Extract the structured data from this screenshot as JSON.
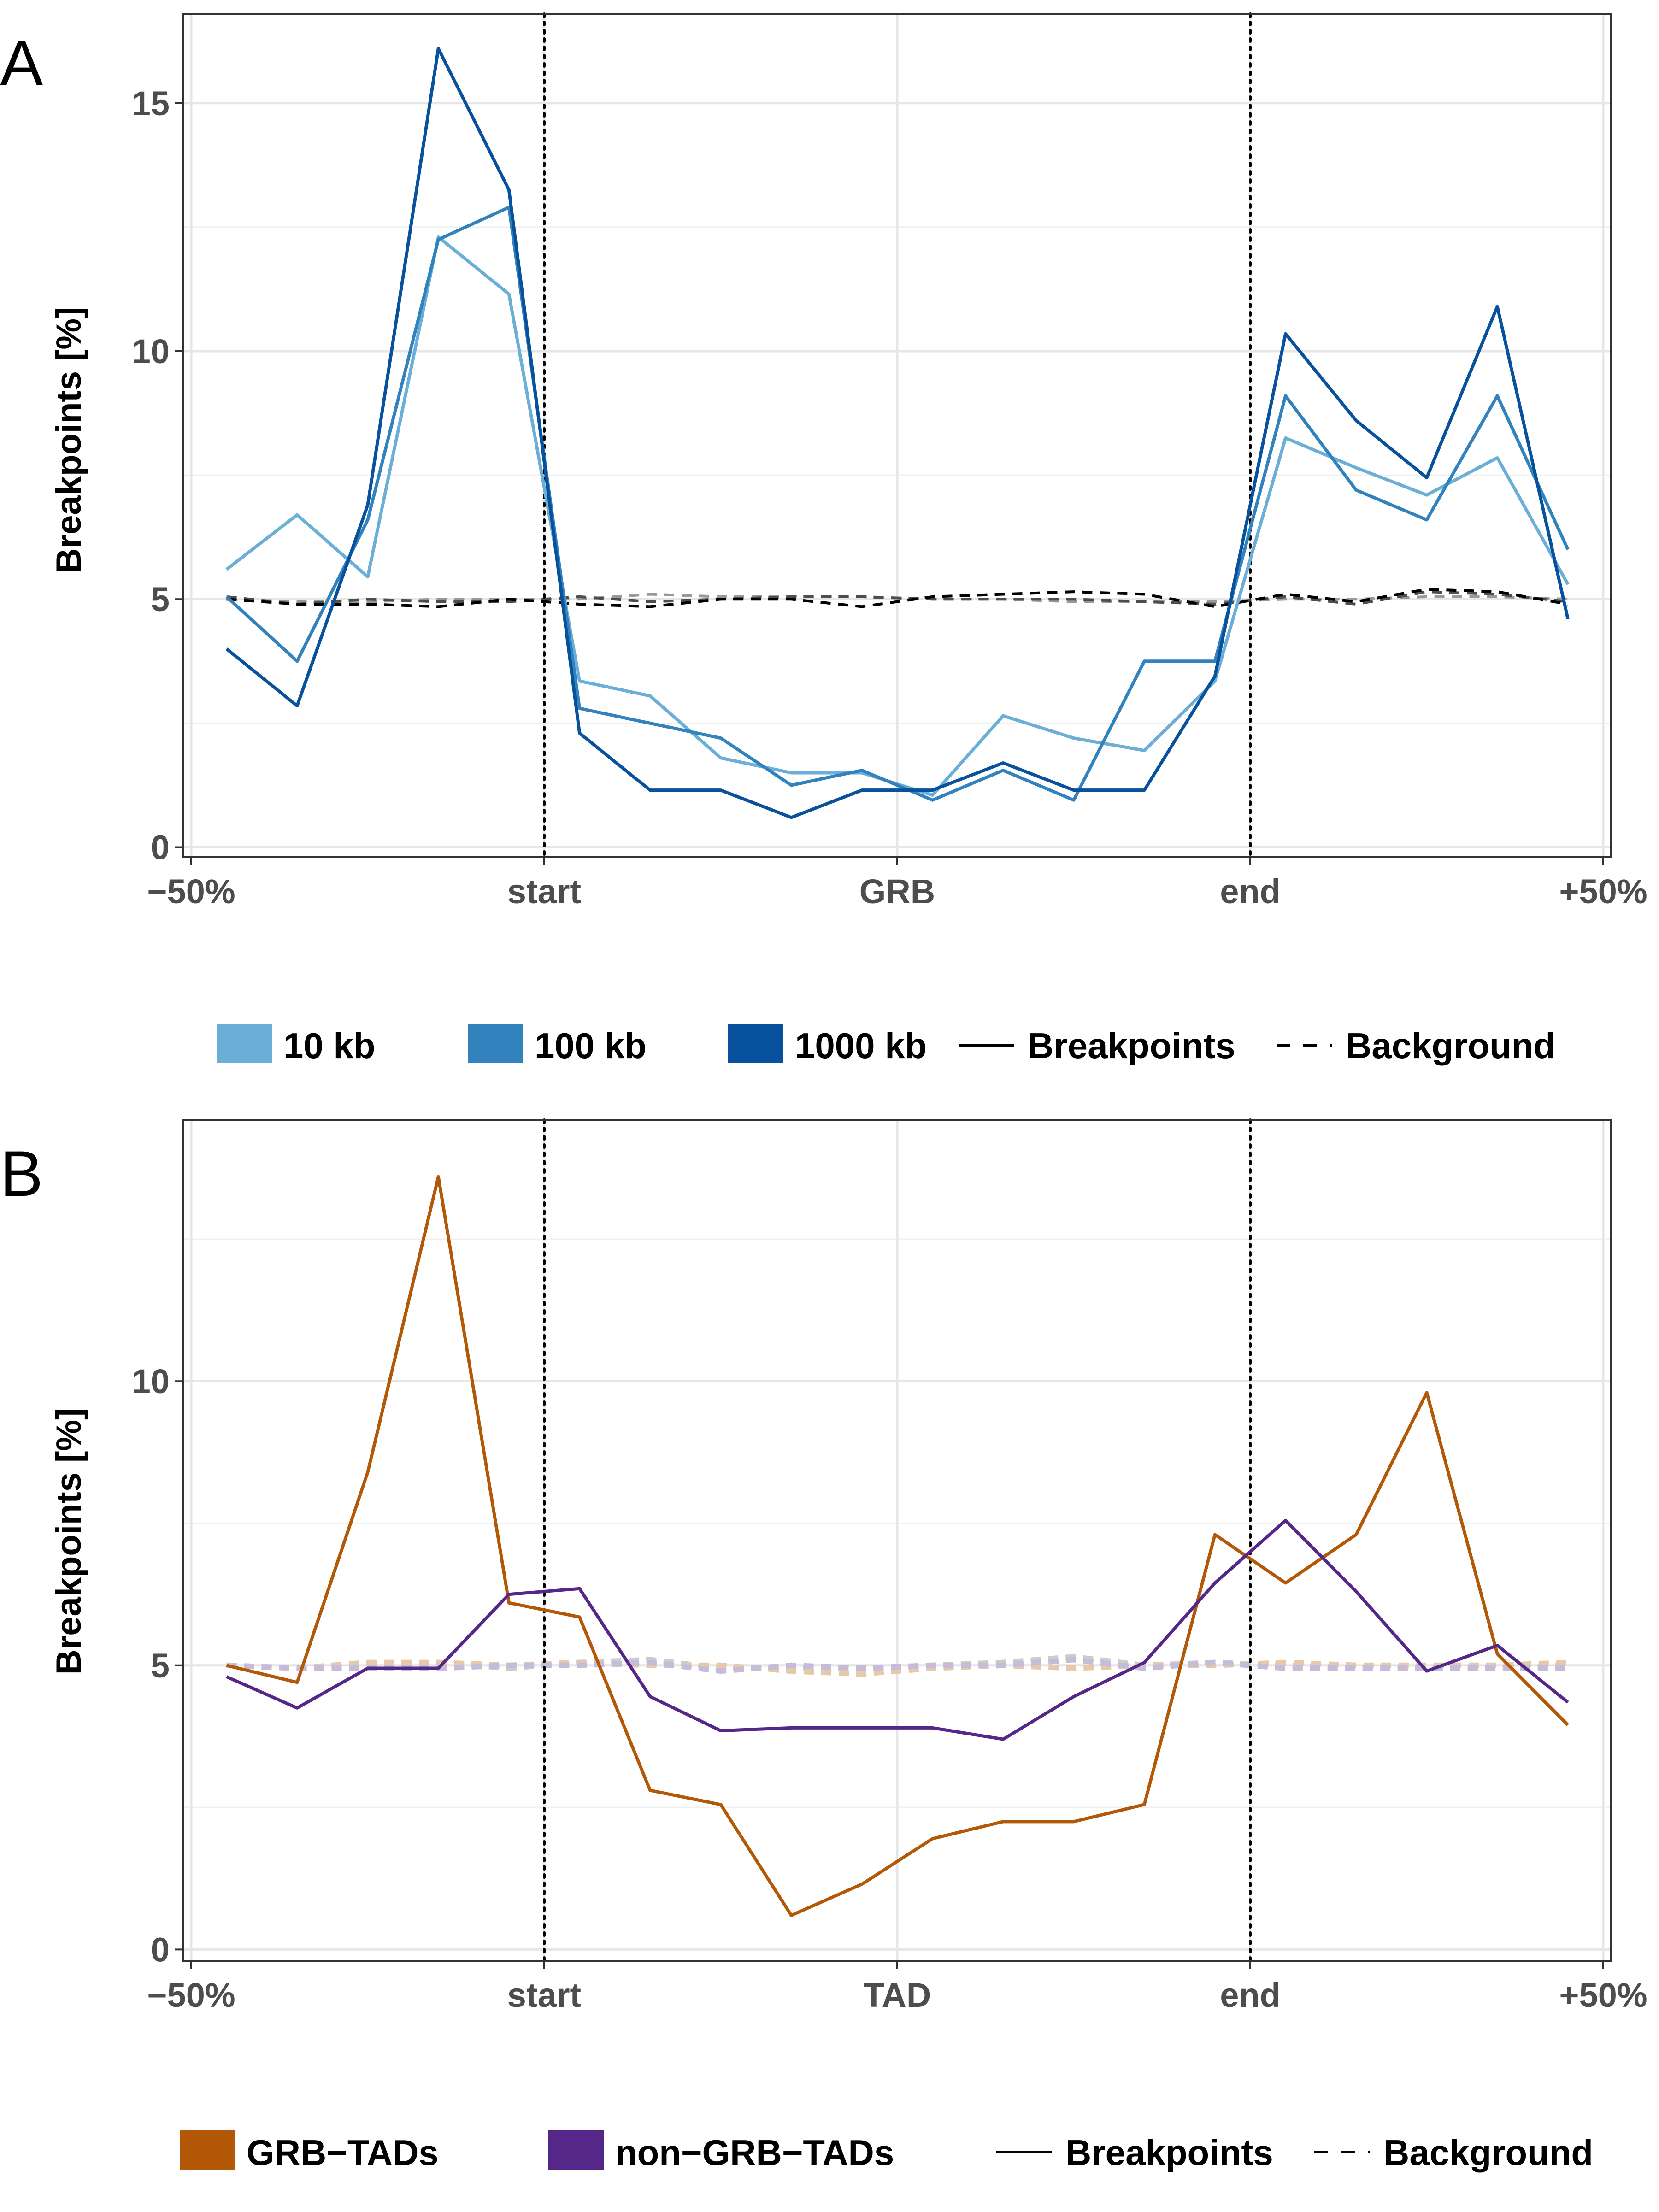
{
  "chart_data": [
    {
      "panel_label": "A",
      "type": "line",
      "ylabel": "Breakpoints [%]",
      "ylim": [
        -0.2,
        16.8
      ],
      "yticks": [
        0,
        5,
        10,
        15
      ],
      "xticks": [
        "−50%",
        "start",
        "GRB",
        "end",
        "+50%"
      ],
      "boundaries": [
        "start",
        "end"
      ],
      "x": [
        -0.45,
        -0.35,
        -0.25,
        -0.15,
        -0.05,
        0.05,
        0.15,
        0.25,
        0.35,
        0.45,
        0.55,
        0.65,
        0.75,
        0.85,
        0.95,
        1.05,
        1.15,
        1.25,
        1.35,
        1.45
      ],
      "series": [
        {
          "name": "10 kb",
          "style": "Breakpoints",
          "color": "#6baed6",
          "values": [
            5.6,
            6.7,
            5.45,
            12.3,
            11.15,
            3.35,
            3.05,
            1.8,
            1.5,
            1.5,
            1.05,
            2.65,
            2.2,
            1.95,
            3.35,
            8.25,
            7.65,
            7.1,
            7.85,
            5.3
          ]
        },
        {
          "name": "100 kb",
          "style": "Breakpoints",
          "color": "#3182bd",
          "values": [
            5.05,
            3.75,
            6.6,
            12.25,
            12.9,
            2.8,
            2.5,
            2.2,
            1.25,
            1.55,
            0.95,
            1.55,
            0.95,
            3.75,
            3.75,
            9.1,
            7.2,
            6.6,
            9.1,
            6.0
          ]
        },
        {
          "name": "1000 kb",
          "style": "Breakpoints",
          "color": "#08519c",
          "values": [
            4.0,
            2.85,
            6.9,
            16.1,
            13.25,
            2.3,
            1.15,
            1.15,
            0.6,
            1.15,
            1.15,
            1.7,
            1.15,
            1.15,
            3.45,
            10.35,
            8.6,
            7.45,
            10.9,
            4.6
          ]
        },
        {
          "name": "Background",
          "style": "Background",
          "color": "#999999",
          "values": [
            5.0,
            4.95,
            4.95,
            5.0,
            5.0,
            5.0,
            5.1,
            5.05,
            5.05,
            5.05,
            5.0,
            5.0,
            4.95,
            4.95,
            4.95,
            5.0,
            5.0,
            5.05,
            5.05,
            5.0
          ]
        },
        {
          "name": "Background",
          "style": "Background",
          "color": "#4d4d4d",
          "values": [
            5.05,
            4.9,
            5.0,
            4.95,
            4.95,
            5.05,
            4.95,
            5.0,
            5.05,
            5.05,
            5.0,
            5.0,
            5.0,
            4.95,
            4.9,
            5.05,
            4.9,
            5.15,
            5.1,
            4.95
          ]
        },
        {
          "name": "Background",
          "style": "Background",
          "color": "#000000",
          "values": [
            5.0,
            4.9,
            4.9,
            4.85,
            5.0,
            4.9,
            4.85,
            5.0,
            5.0,
            4.85,
            5.05,
            5.1,
            5.15,
            5.1,
            4.85,
            5.1,
            4.95,
            5.2,
            5.15,
            4.9
          ]
        }
      ]
    },
    {
      "panel_label": "B",
      "type": "line",
      "ylabel": "Breakpoints [%]",
      "ylim": [
        -0.2,
        14.6
      ],
      "yticks": [
        0,
        5,
        10
      ],
      "xticks": [
        "−50%",
        "start",
        "TAD",
        "end",
        "+50%"
      ],
      "boundaries": [
        "start",
        "end"
      ],
      "x": [
        -0.45,
        -0.35,
        -0.25,
        -0.15,
        -0.05,
        0.05,
        0.15,
        0.25,
        0.35,
        0.45,
        0.55,
        0.65,
        0.75,
        0.85,
        0.95,
        1.05,
        1.15,
        1.25,
        1.35,
        1.45
      ],
      "series": [
        {
          "name": "GRB−TADs",
          "style": "Breakpoints",
          "color": "#b35806",
          "values": [
            5.0,
            4.7,
            8.4,
            13.6,
            6.1,
            5.85,
            2.8,
            2.55,
            0.6,
            1.15,
            1.95,
            2.25,
            2.25,
            2.55,
            7.3,
            6.45,
            7.3,
            9.8,
            5.2,
            3.95
          ]
        },
        {
          "name": "non−GRB−TADs",
          "style": "Breakpoints",
          "color": "#542788",
          "values": [
            4.8,
            4.25,
            4.95,
            4.95,
            6.25,
            6.35,
            4.45,
            3.85,
            3.9,
            3.9,
            3.9,
            3.7,
            4.45,
            5.05,
            6.45,
            7.55,
            6.3,
            4.9,
            5.35,
            4.35
          ]
        },
        {
          "name": "Background",
          "style": "Background",
          "color": "#cccccc",
          "values": [
            5.0,
            4.95,
            5.0,
            5.05,
            4.95,
            5.05,
            5.1,
            4.95,
            4.95,
            4.95,
            5.0,
            5.05,
            5.15,
            5.0,
            5.05,
            5.0,
            4.95,
            4.95,
            4.95,
            5.0
          ]
        },
        {
          "name": "Background",
          "style": "Background",
          "color": "#e6c9a8",
          "values": [
            5.0,
            4.95,
            5.05,
            5.05,
            5.0,
            5.05,
            5.0,
            5.0,
            4.9,
            4.85,
            4.95,
            5.0,
            4.95,
            5.0,
            5.0,
            5.05,
            5.0,
            5.0,
            5.0,
            5.05
          ]
        },
        {
          "name": "Background",
          "style": "Background",
          "color": "#c6bcd9",
          "values": [
            5.0,
            4.95,
            4.95,
            4.95,
            5.0,
            5.0,
            5.05,
            4.9,
            5.0,
            4.95,
            5.0,
            5.0,
            5.1,
            4.95,
            5.05,
            4.95,
            4.95,
            4.95,
            4.95,
            4.95
          ]
        }
      ]
    }
  ],
  "legends": [
    {
      "items": [
        {
          "label": "10 kb",
          "color": "#6baed6"
        },
        {
          "label": "100 kb",
          "color": "#3182bd"
        },
        {
          "label": "1000 kb",
          "color": "#08519c"
        }
      ],
      "solid_label": "Breakpoints",
      "dashed_label": "Background"
    },
    {
      "items": [
        {
          "label": "GRB−TADs",
          "color": "#b35806"
        },
        {
          "label": "non−GRB−TADs",
          "color": "#542788"
        }
      ],
      "solid_label": "Breakpoints",
      "dashed_label": "Background"
    }
  ]
}
